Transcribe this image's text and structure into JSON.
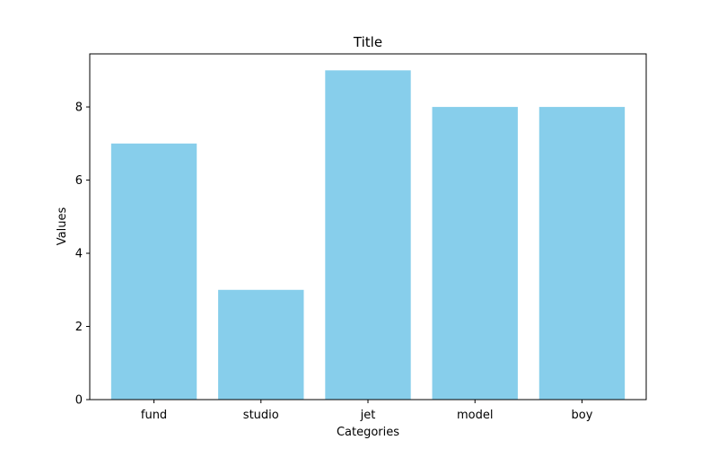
{
  "chart_data": {
    "type": "bar",
    "title": "Title",
    "xlabel": "Categories",
    "ylabel": "Values",
    "categories": [
      "fund",
      "studio",
      "jet",
      "model",
      "boy"
    ],
    "values": [
      7,
      3,
      9,
      8,
      8
    ],
    "ylim": [
      0,
      9.45
    ],
    "yticks": [
      0,
      2,
      4,
      6,
      8
    ],
    "bar_color": "#87CEEB",
    "grid": false
  }
}
